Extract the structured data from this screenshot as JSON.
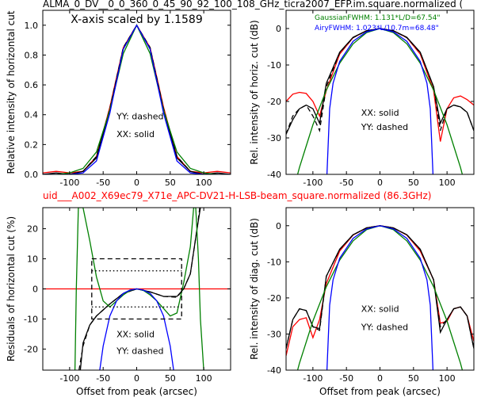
{
  "header": {
    "title_top": "ALMA_0_DV__0_0_360_0_45_90_92_100_108_GHz_ticra2007_EFP.im.square.normalized (",
    "title_mid": "uid___A002_X69ec79_X71e_APC-DV21-H-LSB-beam_square.normalized (86.3GHz)",
    "title_mid_color": "#ff0000"
  },
  "chart_data": [
    {
      "id": "p1",
      "type": "line",
      "annotation": "X-axis scaled by 1.1589",
      "legend": [
        "XX: solid",
        "YY: dashed"
      ],
      "xlabel": "",
      "ylabel": "Relative intensity of horizontal cut",
      "xlim": [
        -140,
        140
      ],
      "ylim": [
        0,
        1.1
      ],
      "xticks": [
        -100,
        -50,
        0,
        50,
        100
      ],
      "yticks": [
        0.0,
        0.2,
        0.4,
        0.6,
        0.8,
        1.0
      ],
      "ytick_labels": [
        "0.0",
        "0.2",
        "0.4",
        "0.6",
        "0.8",
        "1.0"
      ],
      "series": [
        {
          "color": "#ff0000",
          "style": "solid",
          "x": [
            -140,
            -120,
            -100,
            -80,
            -60,
            -40,
            -20,
            0,
            20,
            40,
            60,
            80,
            100,
            120,
            140
          ],
          "y": [
            0.01,
            0.02,
            0.01,
            0.02,
            0.12,
            0.45,
            0.85,
            1.0,
            0.85,
            0.45,
            0.12,
            0.02,
            0.01,
            0.02,
            0.01
          ]
        },
        {
          "color": "#000000",
          "style": "solid",
          "x": [
            -140,
            -120,
            -100,
            -80,
            -60,
            -40,
            -20,
            0,
            20,
            40,
            60,
            80,
            100,
            120,
            140
          ],
          "y": [
            0.0,
            0.01,
            0.0,
            0.02,
            0.11,
            0.43,
            0.84,
            1.0,
            0.84,
            0.43,
            0.11,
            0.02,
            0.0,
            0.01,
            0.0
          ]
        },
        {
          "color": "#000000",
          "style": "dashed",
          "x": [
            -140,
            -120,
            -100,
            -80,
            -60,
            -40,
            -20,
            0,
            20,
            40,
            60,
            80,
            100,
            120,
            140
          ],
          "y": [
            0.0,
            0.0,
            0.0,
            0.02,
            0.12,
            0.44,
            0.85,
            1.0,
            0.85,
            0.44,
            0.12,
            0.02,
            0.0,
            0.0,
            0.0
          ]
        },
        {
          "color": "#008000",
          "style": "solid",
          "x": [
            -140,
            -120,
            -100,
            -80,
            -60,
            -40,
            -20,
            0,
            20,
            40,
            60,
            80,
            100,
            120,
            140
          ],
          "y": [
            0.0,
            0.0,
            0.01,
            0.04,
            0.15,
            0.43,
            0.81,
            1.0,
            0.81,
            0.43,
            0.15,
            0.04,
            0.01,
            0.0,
            0.0
          ]
        },
        {
          "color": "#0000ff",
          "style": "solid",
          "x": [
            -140,
            -120,
            -100,
            -80,
            -60,
            -40,
            -20,
            0,
            20,
            40,
            60,
            80,
            100,
            120,
            140
          ],
          "y": [
            0.0,
            0.0,
            0.0,
            0.01,
            0.09,
            0.41,
            0.84,
            1.0,
            0.84,
            0.41,
            0.09,
            0.01,
            0.0,
            0.0,
            0.0
          ]
        }
      ]
    },
    {
      "id": "p2",
      "type": "line",
      "legend": [
        "XX: solid",
        "YY: dashed"
      ],
      "notes": [
        {
          "text": "GaussianFWHM: 1.131*L/D=67.54\"",
          "color": "#008000"
        },
        {
          "text": "AiryFWHM: 1.023*L/10.7m=68.48\"",
          "color": "#0000ff"
        }
      ],
      "xlabel": "",
      "ylabel": "Rel. intensity of horiz. cut (dB)",
      "xlim": [
        -140,
        140
      ],
      "ylim": [
        -40,
        5
      ],
      "xticks": [
        -100,
        -50,
        0,
        50,
        100
      ],
      "yticks": [
        0,
        -10,
        -20,
        -30,
        -40
      ],
      "series": [
        {
          "color": "#ff0000",
          "style": "solid",
          "x": [
            -140,
            -130,
            -120,
            -110,
            -100,
            -90,
            -80,
            -60,
            -40,
            -20,
            0,
            20,
            40,
            60,
            80,
            90,
            100,
            110,
            120,
            130,
            140
          ],
          "y": [
            -20,
            -18,
            -17.5,
            -17.8,
            -20,
            -24,
            -17,
            -7,
            -2.5,
            -0.6,
            0,
            -0.6,
            -2.5,
            -7,
            -17,
            -31,
            -22,
            -19,
            -18.5,
            -19.5,
            -21
          ]
        },
        {
          "color": "#000000",
          "style": "solid",
          "x": [
            -140,
            -130,
            -120,
            -110,
            -100,
            -90,
            -80,
            -60,
            -40,
            -20,
            0,
            20,
            40,
            60,
            80,
            90,
            100,
            110,
            120,
            130,
            140
          ],
          "y": [
            -29,
            -25,
            -22,
            -21,
            -22,
            -26,
            -15,
            -6.5,
            -2.4,
            -0.6,
            0,
            -0.6,
            -2.4,
            -6.5,
            -16,
            -26,
            -22,
            -21,
            -21.5,
            -23,
            -28
          ]
        },
        {
          "color": "#000000",
          "style": "dashed",
          "x": [
            -140,
            -130,
            -120,
            -110,
            -100,
            -90,
            -80,
            -60,
            -40,
            -20,
            0,
            20,
            40,
            60,
            80,
            90,
            100,
            110,
            120,
            130,
            140
          ],
          "y": [
            -29,
            -24,
            -22,
            -21,
            -24,
            -28,
            -16,
            -6.6,
            -2.5,
            -0.6,
            0,
            -0.6,
            -2.5,
            -6.6,
            -16,
            -28,
            -22,
            -21,
            -21.5,
            -23,
            -28
          ]
        },
        {
          "color": "#008000",
          "style": "solid",
          "x": [
            -140,
            -120,
            -100,
            -80,
            -60,
            -40,
            -20,
            0,
            20,
            40,
            60,
            80,
            100,
            120,
            140
          ],
          "y": [
            -51.9,
            -38.1,
            -26.4,
            -16.9,
            -9.5,
            -4.2,
            -1.1,
            0,
            -1.1,
            -4.2,
            -9.5,
            -16.9,
            -26.4,
            -38.1,
            -51.9
          ]
        },
        {
          "color": "#0000ff",
          "style": "solid",
          "x": [
            -79,
            -75,
            -70,
            -60,
            -40,
            -20,
            0,
            20,
            40,
            60,
            70,
            75,
            79
          ],
          "y": [
            -40,
            -22,
            -15,
            -9,
            -3.5,
            -0.9,
            0,
            -0.9,
            -3.5,
            -9,
            -15,
            -22,
            -40
          ]
        }
      ]
    },
    {
      "id": "p3",
      "type": "line",
      "legend": [
        "XX: solid",
        "YY: dashed"
      ],
      "xlabel": "Offset from peak (arcsec)",
      "ylabel": "Residuals of horizontal cut (%)",
      "xlim": [
        -140,
        140
      ],
      "ylim": [
        -27,
        27
      ],
      "xticks": [
        -100,
        -50,
        0,
        50,
        100
      ],
      "yticks": [
        20,
        10,
        0,
        -10,
        -20
      ],
      "series": [
        {
          "color": "#ff0000",
          "style": "solid",
          "x": [
            -140,
            140
          ],
          "y": [
            0,
            0
          ]
        },
        {
          "color": "#000000",
          "style": "solid",
          "x": [
            -84,
            -80,
            -70,
            -60,
            -40,
            -20,
            0,
            20,
            40,
            60,
            70,
            80,
            90,
            95
          ],
          "y": [
            -27,
            -18,
            -12,
            -9,
            -5,
            -1.5,
            0,
            -1,
            -2.5,
            -2.5,
            0,
            5,
            20,
            27
          ]
        },
        {
          "color": "#000000",
          "style": "dashed",
          "x": [
            -86,
            -80,
            -70,
            -60,
            -40,
            -20,
            0,
            20,
            40,
            60,
            70,
            80,
            90,
            94
          ],
          "y": [
            -27,
            -19,
            -12,
            -9,
            -5,
            -1.5,
            0,
            -1,
            -2.5,
            -2.8,
            0,
            5,
            20,
            27
          ]
        },
        {
          "color": "#008000",
          "style": "solid",
          "x": [
            -92,
            -90,
            -87,
            -80,
            -70,
            -60,
            -50,
            -40,
            -30,
            -20,
            -10,
            0,
            10,
            20,
            30,
            40,
            50,
            60,
            70,
            80,
            85,
            88,
            92,
            95,
            100
          ],
          "y": [
            -27,
            0,
            27,
            27,
            16,
            4,
            -4,
            -6,
            -4,
            -2,
            -0.5,
            0,
            -0.5,
            -2,
            -4,
            -6.5,
            -9,
            -8,
            2,
            14,
            27,
            27,
            10,
            -10,
            -27
          ]
        },
        {
          "color": "#0000ff",
          "style": "solid",
          "x": [
            -55,
            -50,
            -40,
            -30,
            -20,
            -10,
            0,
            10,
            20,
            30,
            40,
            50,
            55
          ],
          "y": [
            -27,
            -19,
            -9,
            -4,
            -1.5,
            -0.4,
            0,
            -0.4,
            -1.5,
            -4,
            -9,
            -19,
            -27
          ]
        },
        {
          "color": "#000000",
          "style": "dashed",
          "x": [
            -67,
            67,
            67,
            -67,
            -67
          ],
          "y": [
            10,
            10,
            -10,
            -10,
            10
          ]
        },
        {
          "color": "#000000",
          "style": "dotted",
          "x": [
            -67,
            67
          ],
          "y": [
            6,
            6
          ]
        },
        {
          "color": "#000000",
          "style": "dotted",
          "x": [
            -67,
            67
          ],
          "y": [
            -6,
            -6
          ]
        }
      ]
    },
    {
      "id": "p4",
      "type": "line",
      "legend": [
        "XX: solid",
        "YY: dashed"
      ],
      "xlabel": "Offset from peak (arcsec)",
      "ylabel": "Rel. intensity of diag. cut (dB)",
      "xlim": [
        -140,
        140
      ],
      "ylim": [
        -40,
        5
      ],
      "xticks": [
        -100,
        -50,
        0,
        50,
        100
      ],
      "yticks": [
        0,
        -10,
        -20,
        -30,
        -40
      ],
      "series": [
        {
          "color": "#ff0000",
          "style": "solid",
          "x": [
            -140,
            -130,
            -120,
            -110,
            -100,
            -90,
            -80,
            -60,
            -40,
            -20,
            0,
            20,
            40,
            60,
            80,
            90,
            100,
            110,
            120,
            130,
            140
          ],
          "y": [
            -36,
            -28,
            -26,
            -25.5,
            -31,
            -26,
            -16,
            -7,
            -2.6,
            -0.6,
            0,
            -0.6,
            -2.6,
            -7,
            -15,
            -27,
            -26.5,
            -23,
            -22.5,
            -25,
            -32
          ]
        },
        {
          "color": "#000000",
          "style": "solid",
          "x": [
            -140,
            -130,
            -120,
            -110,
            -100,
            -90,
            -80,
            -60,
            -40,
            -20,
            0,
            20,
            40,
            60,
            80,
            90,
            100,
            110,
            120,
            130,
            140
          ],
          "y": [
            -34,
            -26,
            -23,
            -23.5,
            -28,
            -28.5,
            -14,
            -6.5,
            -2.5,
            -0.6,
            0,
            -0.6,
            -2.5,
            -6.5,
            -15,
            -29.5,
            -26,
            -23,
            -22.5,
            -25,
            -34
          ]
        },
        {
          "color": "#000000",
          "style": "dashed",
          "x": [
            -140,
            -130,
            -120,
            -110,
            -100,
            -90,
            -80,
            -60,
            -40,
            -20,
            0,
            20,
            40,
            60,
            80,
            90,
            100,
            110,
            120,
            130,
            140
          ],
          "y": [
            -34,
            -26,
            -23,
            -23.5,
            -28,
            -29,
            -14,
            -6.6,
            -2.5,
            -0.6,
            0,
            -0.6,
            -2.5,
            -6.6,
            -15,
            -28,
            -26,
            -23,
            -22.5,
            -25,
            -34
          ]
        },
        {
          "color": "#008000",
          "style": "solid",
          "x": [
            -140,
            -120,
            -100,
            -80,
            -60,
            -40,
            -20,
            0,
            20,
            40,
            60,
            80,
            100,
            120,
            140
          ],
          "y": [
            -51.9,
            -38.1,
            -26.4,
            -16.9,
            -9.5,
            -4.2,
            -1.1,
            0,
            -1.1,
            -4.2,
            -9.5,
            -16.9,
            -26.4,
            -38.1,
            -51.9
          ]
        },
        {
          "color": "#0000ff",
          "style": "solid",
          "x": [
            -79,
            -75,
            -70,
            -60,
            -40,
            -20,
            0,
            20,
            40,
            60,
            70,
            75,
            79
          ],
          "y": [
            -40,
            -22,
            -15,
            -9,
            -3.5,
            -0.9,
            0,
            -0.9,
            -3.5,
            -9,
            -15,
            -22,
            -40
          ]
        }
      ]
    }
  ]
}
